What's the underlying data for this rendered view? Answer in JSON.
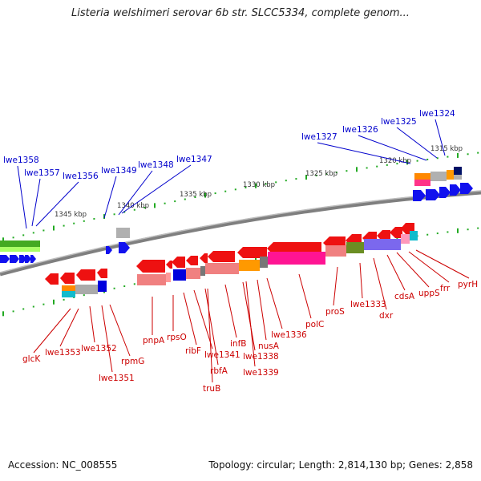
{
  "title": "Listeria welshimeri serovar 6b str. SLCC5334, complete genom...",
  "footer": {
    "accession": "Accession: NC_008555",
    "topology": "Topology: circular; Length: 2,814,130 bp; Genes: 2,858"
  },
  "ruler_labels": [
    "1315 kbp",
    "1320 kbp",
    "1325 kbp",
    "1330 kbp",
    "1335 kbp",
    "1340 kbp",
    "1345 kbp"
  ],
  "colors": {
    "forward_label": "#0000cc",
    "reverse_label": "#cc0000",
    "backbone": "#7f7f7f"
  },
  "forward_genes": [
    "lwe1358",
    "lwe1357",
    "lwe1356",
    "lwe1349",
    "lwe1348",
    "lwe1347",
    "lwe1327",
    "lwe1326",
    "lwe1325",
    "lwe1324"
  ],
  "reverse_genes": [
    "glcK",
    "lwe1353",
    "lwe1352",
    "lwe1351",
    "rpmG",
    "pnpA",
    "rpsO",
    "ribF",
    "lwe1341",
    "rbfA",
    "truB",
    "infB",
    "lwe1338",
    "lwe1339",
    "nusA",
    "lwe1336",
    "polC",
    "proS",
    "lwe1333",
    "dxr",
    "cdsA",
    "uppS",
    "frr",
    "pyrH"
  ]
}
